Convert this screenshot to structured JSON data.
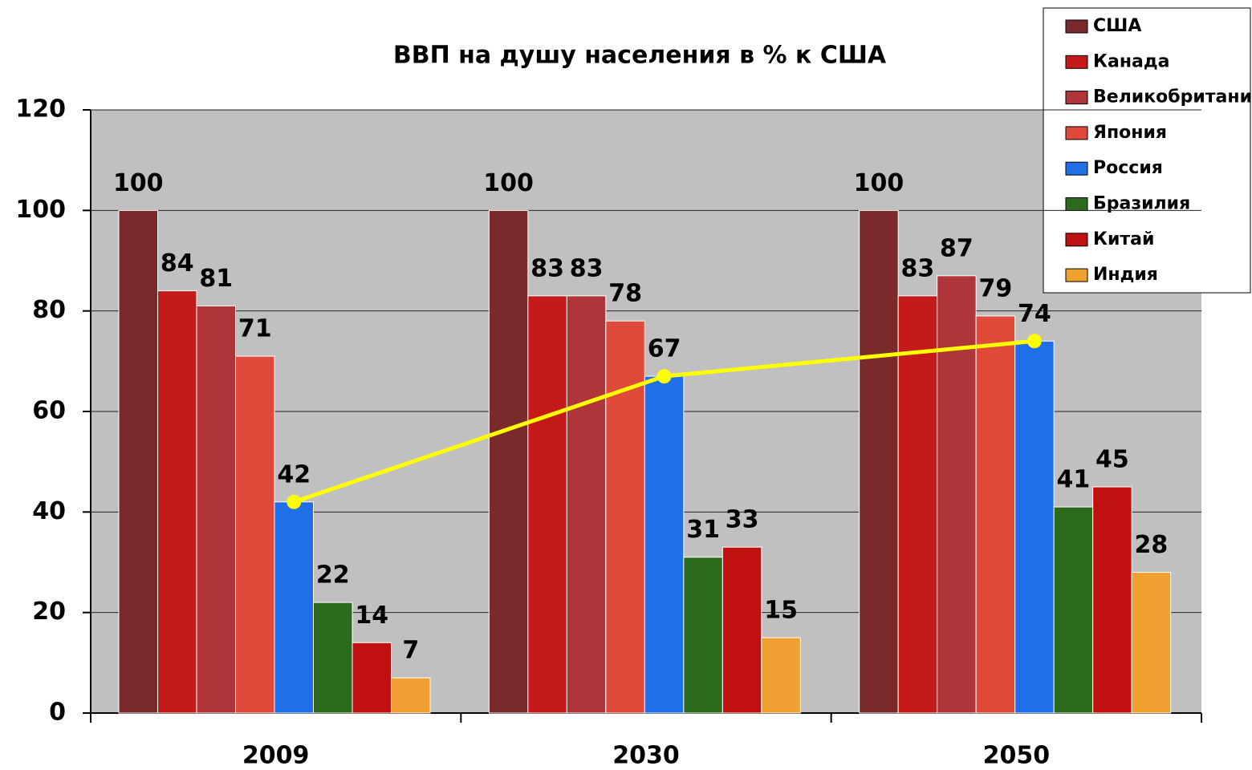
{
  "chart_data": {
    "type": "bar",
    "title": "ВВП на душу населения в % к США",
    "categories": [
      "2009",
      "2030",
      "2050"
    ],
    "series": [
      {
        "name": "США",
        "color": "#7a2a2a",
        "values": [
          100,
          100,
          100
        ]
      },
      {
        "name": "Канада",
        "color": "#c41a1a",
        "values": [
          84,
          83,
          83
        ]
      },
      {
        "name": "Великобритания",
        "color": "#b0353a",
        "values": [
          81,
          83,
          87
        ]
      },
      {
        "name": "Япония",
        "color": "#e04a3a",
        "values": [
          71,
          78,
          79
        ]
      },
      {
        "name": "Россия",
        "color": "#1e6fe8",
        "values": [
          42,
          67,
          74
        ]
      },
      {
        "name": "Бразилия",
        "color": "#2c6a1e",
        "values": [
          22,
          31,
          41
        ]
      },
      {
        "name": "Китай",
        "color": "#c01010",
        "values": [
          14,
          33,
          45
        ]
      },
      {
        "name": "Индия",
        "color": "#f0a030",
        "values": [
          7,
          15,
          28
        ]
      }
    ],
    "line": {
      "series": 4,
      "color": "#ffff00"
    },
    "ylim": [
      0,
      120
    ],
    "yticks": [
      0,
      20,
      40,
      60,
      80,
      100,
      120
    ],
    "grid": true
  }
}
